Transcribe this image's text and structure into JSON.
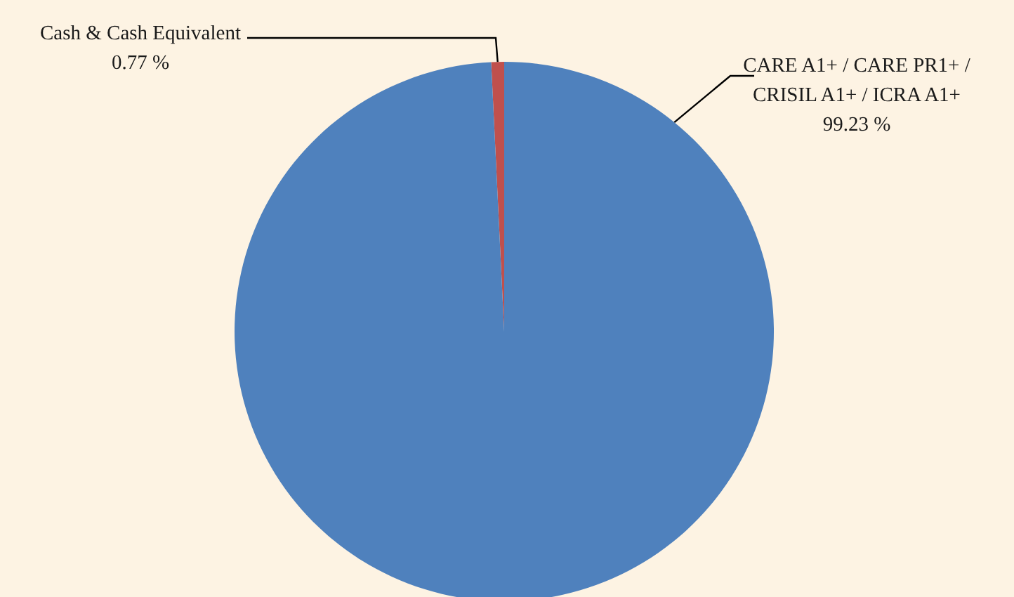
{
  "chart_data": {
    "type": "pie",
    "categories": [
      "Cash & Cash Equivalent",
      "CARE A1+ / CARE PR1+ / CRISIL A1+ / ICRA A1+"
    ],
    "values": [
      0.77,
      99.23
    ],
    "colors": [
      "#c0504d",
      "#4f81bd"
    ],
    "value_labels": [
      "0.77 %",
      "99.23 %"
    ]
  }
}
